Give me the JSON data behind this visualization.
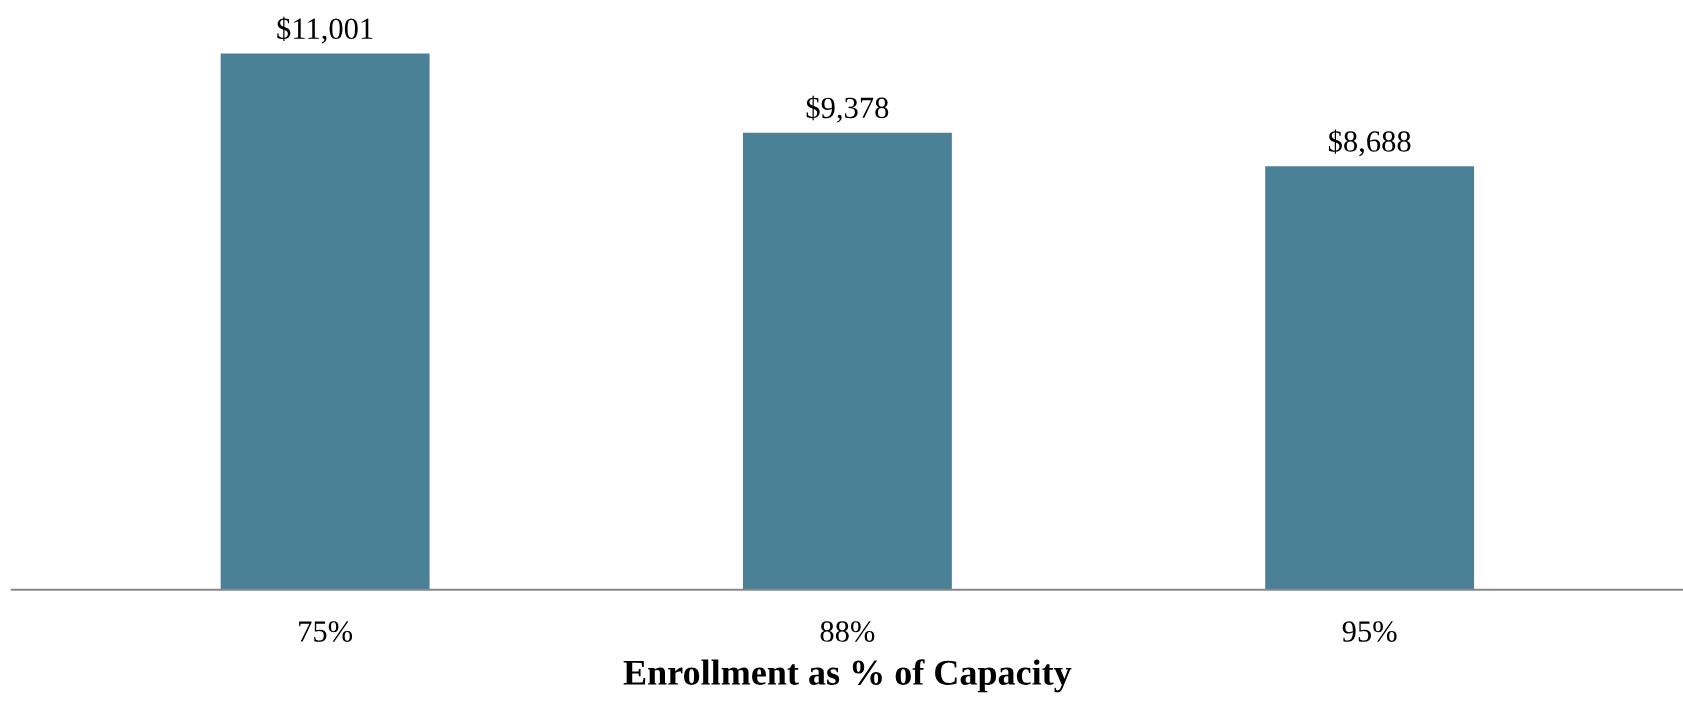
{
  "chart_data": {
    "type": "bar",
    "xlabel": "Enrollment as % of Capacity",
    "categories": [
      "75%",
      "88%",
      "95%"
    ],
    "values": [
      11001,
      9378,
      8688
    ],
    "value_labels": [
      "$11,001",
      "$9,378",
      "$8,688"
    ],
    "color": "#4b8196",
    "tick_labels": "x",
    "grid": false,
    "legend": false
  }
}
